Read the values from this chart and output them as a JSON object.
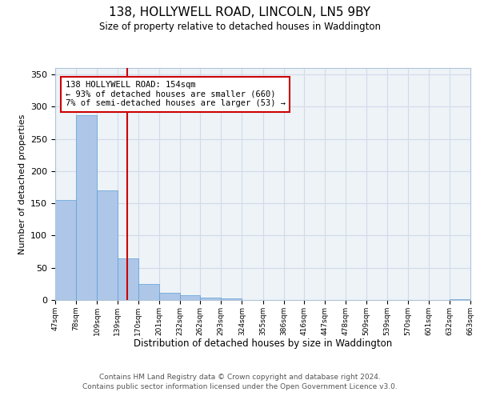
{
  "title": "138, HOLLYWELL ROAD, LINCOLN, LN5 9BY",
  "subtitle": "Size of property relative to detached houses in Waddington",
  "xlabel": "Distribution of detached houses by size in Waddington",
  "ylabel": "Number of detached properties",
  "bar_color": "#aec6e8",
  "bar_edge_color": "#5a9fd4",
  "bar_edge_width": 0.5,
  "grid_color": "#d0dce8",
  "background_color": "#eef3f8",
  "vline_x": 154,
  "vline_color": "#cc0000",
  "annotation_text": "138 HOLLYWELL ROAD: 154sqm\n← 93% of detached houses are smaller (660)\n7% of semi-detached houses are larger (53) →",
  "annotation_box_color": "#ffffff",
  "annotation_box_edge": "#cc0000",
  "bin_edges": [
    47,
    78,
    109,
    139,
    170,
    201,
    232,
    262,
    293,
    324,
    355,
    386,
    416,
    447,
    478,
    509,
    539,
    570,
    601,
    632,
    663
  ],
  "bar_heights": [
    155,
    287,
    170,
    65,
    25,
    11,
    7,
    4,
    2,
    0,
    0,
    0,
    0,
    0,
    0,
    0,
    0,
    0,
    0,
    1
  ],
  "tick_labels": [
    "47sqm",
    "78sqm",
    "109sqm",
    "139sqm",
    "170sqm",
    "201sqm",
    "232sqm",
    "262sqm",
    "293sqm",
    "324sqm",
    "355sqm",
    "386sqm",
    "416sqm",
    "447sqm",
    "478sqm",
    "509sqm",
    "539sqm",
    "570sqm",
    "601sqm",
    "632sqm",
    "663sqm"
  ],
  "ylim": [
    0,
    360
  ],
  "yticks": [
    0,
    50,
    100,
    150,
    200,
    250,
    300,
    350
  ],
  "footer_line1": "Contains HM Land Registry data © Crown copyright and database right 2024.",
  "footer_line2": "Contains public sector information licensed under the Open Government Licence v3.0."
}
